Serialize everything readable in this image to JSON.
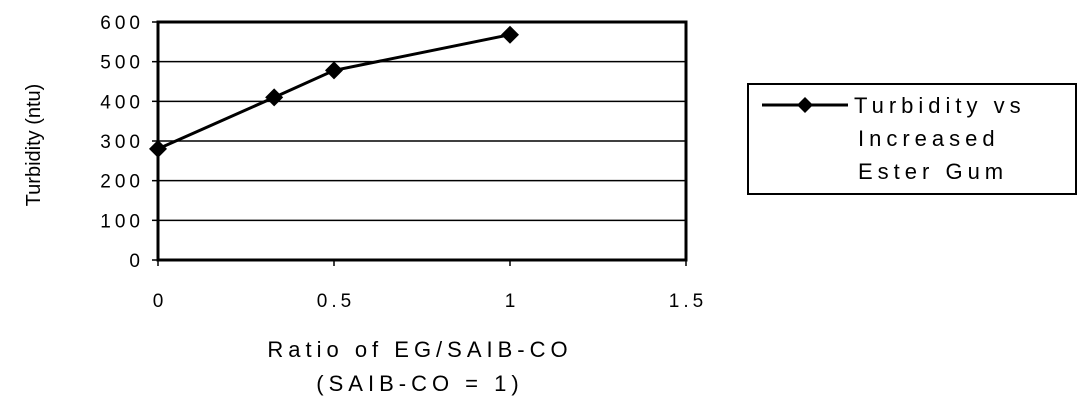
{
  "chart_data": {
    "type": "line",
    "title": "",
    "xlabel": "Ratio of EG/SAIB-CO",
    "xlabel_line2": "(SAIB-CO = 1)",
    "ylabel": "Turbidity (ntu)",
    "xlim": [
      0,
      1.5
    ],
    "ylim": [
      0,
      600
    ],
    "x_ticks": [
      "0",
      "0.5",
      "1",
      "1.5"
    ],
    "y_ticks": [
      "0",
      "100",
      "200",
      "300",
      "400",
      "500",
      "600"
    ],
    "grid": "horizontal",
    "legend_position": "right",
    "series": [
      {
        "name": "Turbidity vs Increased Ester Gum",
        "name_lines": [
          "Turbidity vs",
          "Increased",
          "Ester Gum"
        ],
        "color": "#000000",
        "marker": "diamond",
        "x": [
          0,
          0.33,
          0.5,
          1.0
        ],
        "y": [
          280,
          410,
          478,
          568
        ]
      }
    ]
  }
}
